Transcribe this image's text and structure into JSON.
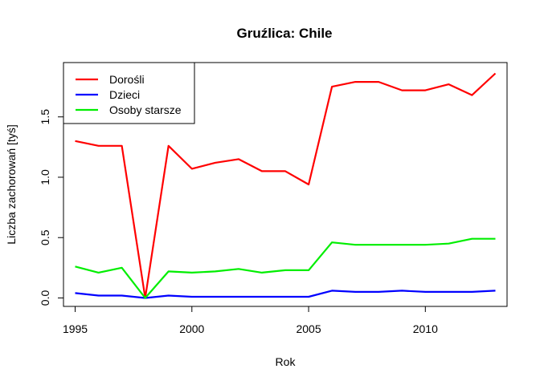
{
  "chart_data": {
    "type": "line",
    "title": "Gruźlica: Chile",
    "xlabel": "Rok",
    "ylabel": "Liczba zachorowań [tyś]",
    "xlim": [
      1994.5,
      2013.5
    ],
    "ylim": [
      -0.07,
      1.95
    ],
    "x_ticks": [
      1995,
      2000,
      2005,
      2010
    ],
    "y_ticks": [
      0.0,
      0.5,
      1.0,
      1.5
    ],
    "y_tick_labels": [
      "0.0",
      "0.5",
      "1.0",
      "1.5"
    ],
    "x": [
      1995,
      1996,
      1997,
      1998,
      1999,
      2000,
      2001,
      2002,
      2003,
      2004,
      2005,
      2006,
      2007,
      2008,
      2009,
      2010,
      2011,
      2012,
      2013
    ],
    "series": [
      {
        "name": "Dorośli",
        "color": "#ff0000",
        "values": [
          1.3,
          1.26,
          1.26,
          0.0,
          1.26,
          1.07,
          1.12,
          1.15,
          1.05,
          1.05,
          0.94,
          1.75,
          1.79,
          1.79,
          1.72,
          1.72,
          1.77,
          1.68,
          1.86
        ]
      },
      {
        "name": "Dzieci",
        "color": "#0000ff",
        "values": [
          0.04,
          0.02,
          0.02,
          0.0,
          0.02,
          0.01,
          0.01,
          0.01,
          0.01,
          0.01,
          0.01,
          0.06,
          0.05,
          0.05,
          0.06,
          0.05,
          0.05,
          0.05,
          0.06
        ]
      },
      {
        "name": "Osoby starsze",
        "color": "#00ee00",
        "values": [
          0.26,
          0.21,
          0.25,
          0.0,
          0.22,
          0.21,
          0.22,
          0.24,
          0.21,
          0.23,
          0.23,
          0.46,
          0.44,
          0.44,
          0.44,
          0.44,
          0.45,
          0.49,
          0.49
        ]
      }
    ],
    "legend_position": "top-left",
    "grid": false
  }
}
